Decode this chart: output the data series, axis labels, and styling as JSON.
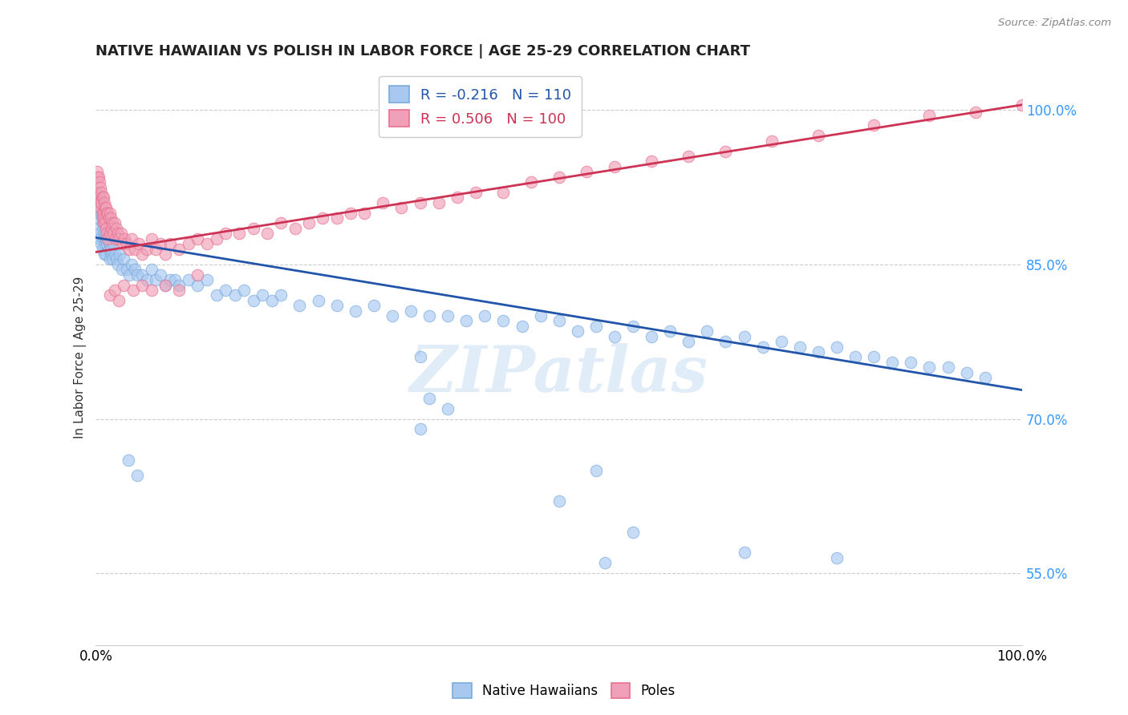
{
  "title": "NATIVE HAWAIIAN VS POLISH IN LABOR FORCE | AGE 25-29 CORRELATION CHART",
  "source_text": "Source: ZipAtlas.com",
  "xmin": 0.0,
  "xmax": 1.0,
  "ymin": 0.48,
  "ymax": 1.04,
  "blue_R": -0.216,
  "blue_N": 110,
  "pink_R": 0.506,
  "pink_N": 100,
  "blue_color": "#a8c8f0",
  "pink_color": "#f0a0b8",
  "blue_edge_color": "#7aabdc",
  "pink_edge_color": "#e87090",
  "blue_line_color": "#2255aa",
  "pink_line_color": "#cc3355",
  "blue_label": "Native Hawaiians",
  "pink_label": "Poles",
  "blue_line_start_x": 0.0,
  "blue_line_start_y": 0.876,
  "blue_line_end_x": 1.0,
  "blue_line_end_y": 0.728,
  "pink_line_start_x": 0.0,
  "pink_line_start_y": 0.862,
  "pink_line_end_x": 1.0,
  "pink_line_end_y": 1.005,
  "ytick_vals": [
    0.55,
    0.7,
    0.85,
    1.0
  ],
  "ytick_labels": [
    "55.0%",
    "70.0%",
    "85.0%",
    "100.0%"
  ],
  "watermark_text": "ZIPatlas",
  "legend_text_blue": "R = -0.216   N = 110",
  "legend_text_pink": "R = 0.506   N = 100",
  "blue_scatter_x": [
    0.001,
    0.002,
    0.003,
    0.003,
    0.004,
    0.004,
    0.005,
    0.005,
    0.006,
    0.006,
    0.007,
    0.007,
    0.008,
    0.008,
    0.009,
    0.009,
    0.01,
    0.01,
    0.011,
    0.011,
    0.012,
    0.013,
    0.014,
    0.015,
    0.015,
    0.016,
    0.017,
    0.018,
    0.019,
    0.02,
    0.022,
    0.024,
    0.026,
    0.028,
    0.03,
    0.033,
    0.036,
    0.039,
    0.042,
    0.045,
    0.05,
    0.055,
    0.06,
    0.065,
    0.07,
    0.075,
    0.08,
    0.085,
    0.09,
    0.1,
    0.11,
    0.12,
    0.13,
    0.14,
    0.15,
    0.16,
    0.17,
    0.18,
    0.19,
    0.2,
    0.22,
    0.24,
    0.26,
    0.28,
    0.3,
    0.32,
    0.34,
    0.36,
    0.38,
    0.4,
    0.42,
    0.44,
    0.46,
    0.48,
    0.5,
    0.52,
    0.54,
    0.56,
    0.58,
    0.6,
    0.62,
    0.64,
    0.66,
    0.68,
    0.7,
    0.72,
    0.74,
    0.76,
    0.78,
    0.8,
    0.82,
    0.84,
    0.86,
    0.88,
    0.9,
    0.92,
    0.94,
    0.96,
    0.035,
    0.045,
    0.35,
    0.36,
    0.35,
    0.38,
    0.5,
    0.54,
    0.55,
    0.58,
    0.7,
    0.8
  ],
  "blue_scatter_y": [
    0.92,
    0.895,
    0.9,
    0.885,
    0.915,
    0.88,
    0.91,
    0.875,
    0.9,
    0.87,
    0.89,
    0.865,
    0.885,
    0.875,
    0.88,
    0.86,
    0.875,
    0.87,
    0.875,
    0.86,
    0.87,
    0.875,
    0.865,
    0.87,
    0.855,
    0.865,
    0.86,
    0.855,
    0.87,
    0.86,
    0.855,
    0.85,
    0.86,
    0.845,
    0.855,
    0.845,
    0.84,
    0.85,
    0.845,
    0.84,
    0.84,
    0.835,
    0.845,
    0.835,
    0.84,
    0.83,
    0.835,
    0.835,
    0.83,
    0.835,
    0.83,
    0.835,
    0.82,
    0.825,
    0.82,
    0.825,
    0.815,
    0.82,
    0.815,
    0.82,
    0.81,
    0.815,
    0.81,
    0.805,
    0.81,
    0.8,
    0.805,
    0.8,
    0.8,
    0.795,
    0.8,
    0.795,
    0.79,
    0.8,
    0.795,
    0.785,
    0.79,
    0.78,
    0.79,
    0.78,
    0.785,
    0.775,
    0.785,
    0.775,
    0.78,
    0.77,
    0.775,
    0.77,
    0.765,
    0.77,
    0.76,
    0.76,
    0.755,
    0.755,
    0.75,
    0.75,
    0.745,
    0.74,
    0.66,
    0.645,
    0.76,
    0.72,
    0.69,
    0.71,
    0.62,
    0.65,
    0.56,
    0.59,
    0.57,
    0.565
  ],
  "pink_scatter_x": [
    0.001,
    0.002,
    0.002,
    0.003,
    0.003,
    0.004,
    0.004,
    0.005,
    0.005,
    0.006,
    0.006,
    0.007,
    0.007,
    0.007,
    0.008,
    0.008,
    0.008,
    0.009,
    0.009,
    0.01,
    0.01,
    0.011,
    0.011,
    0.012,
    0.012,
    0.013,
    0.013,
    0.014,
    0.015,
    0.015,
    0.016,
    0.017,
    0.018,
    0.019,
    0.02,
    0.021,
    0.022,
    0.024,
    0.025,
    0.027,
    0.029,
    0.031,
    0.033,
    0.036,
    0.039,
    0.042,
    0.046,
    0.05,
    0.055,
    0.06,
    0.065,
    0.07,
    0.075,
    0.08,
    0.09,
    0.1,
    0.11,
    0.12,
    0.13,
    0.14,
    0.155,
    0.17,
    0.185,
    0.2,
    0.215,
    0.23,
    0.245,
    0.26,
    0.275,
    0.29,
    0.31,
    0.33,
    0.35,
    0.37,
    0.39,
    0.41,
    0.44,
    0.47,
    0.5,
    0.53,
    0.56,
    0.6,
    0.64,
    0.68,
    0.73,
    0.78,
    0.84,
    0.9,
    0.95,
    1.0,
    0.015,
    0.02,
    0.025,
    0.03,
    0.04,
    0.05,
    0.06,
    0.075,
    0.09,
    0.11
  ],
  "pink_scatter_y": [
    0.94,
    0.935,
    0.92,
    0.935,
    0.915,
    0.93,
    0.91,
    0.925,
    0.905,
    0.92,
    0.91,
    0.915,
    0.9,
    0.895,
    0.915,
    0.9,
    0.89,
    0.91,
    0.895,
    0.905,
    0.89,
    0.905,
    0.885,
    0.9,
    0.88,
    0.9,
    0.875,
    0.895,
    0.9,
    0.88,
    0.895,
    0.885,
    0.89,
    0.88,
    0.89,
    0.875,
    0.885,
    0.88,
    0.875,
    0.88,
    0.87,
    0.875,
    0.87,
    0.865,
    0.875,
    0.865,
    0.87,
    0.86,
    0.865,
    0.875,
    0.865,
    0.87,
    0.86,
    0.87,
    0.865,
    0.87,
    0.875,
    0.87,
    0.875,
    0.88,
    0.88,
    0.885,
    0.88,
    0.89,
    0.885,
    0.89,
    0.895,
    0.895,
    0.9,
    0.9,
    0.91,
    0.905,
    0.91,
    0.91,
    0.915,
    0.92,
    0.92,
    0.93,
    0.935,
    0.94,
    0.945,
    0.95,
    0.955,
    0.96,
    0.97,
    0.975,
    0.985,
    0.995,
    0.998,
    1.005,
    0.82,
    0.825,
    0.815,
    0.83,
    0.825,
    0.83,
    0.825,
    0.83,
    0.825,
    0.84
  ]
}
